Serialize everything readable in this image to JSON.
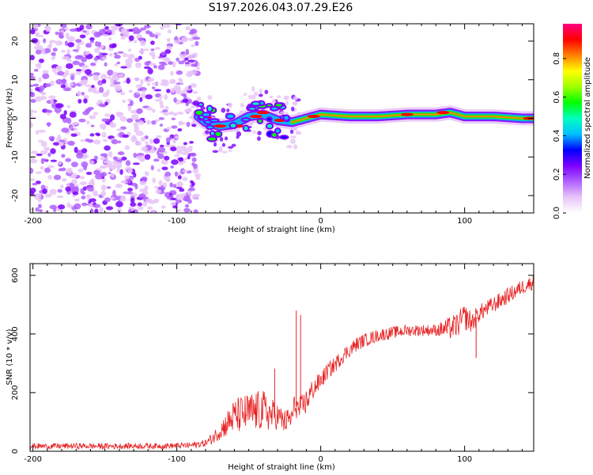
{
  "title": "S197.2026.043.07.29.E26",
  "chart_data": [
    {
      "type": "heatmap",
      "xlabel": "Height of straight line (km)",
      "ylabel": "Frequency (Hz)",
      "xlim": [
        -202,
        148
      ],
      "ylim": [
        -24.5,
        24.5
      ],
      "x_ticks": [
        -200,
        -100,
        0,
        100
      ],
      "y_ticks": [
        -20,
        -10,
        0,
        10,
        20
      ],
      "colorbar": {
        "label": "Normalized spectral amplitude",
        "range": [
          0,
          0.98
        ],
        "ticks": [
          0.0,
          0.2,
          0.4,
          0.6,
          0.8
        ],
        "tick_labels": [
          "0.0",
          "0.2",
          "0.4",
          "0.6",
          "0.8"
        ],
        "colors": [
          "#ffffff",
          "#e8c4f8",
          "#b060ff",
          "#7c00ff",
          "#0000ff",
          "#00c0ff",
          "#00ffc0",
          "#00ff00",
          "#a0ff00",
          "#ffff00",
          "#ff8000",
          "#ff0000",
          "#ff0080"
        ]
      },
      "ridge": {
        "x": [
          -85,
          -80,
          -70,
          -60,
          -50,
          -40,
          -30,
          -20,
          -10,
          0,
          20,
          40,
          60,
          80,
          90,
          100,
          110,
          120,
          140,
          148
        ],
        "freq_hz": [
          0.5,
          -1,
          -2,
          -1.5,
          0.5,
          1,
          -0.5,
          -1,
          0,
          1,
          0.5,
          0.5,
          1,
          1,
          1.5,
          0.5,
          0.5,
          0.5,
          0,
          0
        ]
      }
    },
    {
      "type": "line",
      "xlabel": "Height of straight line (km)",
      "ylabel": "SNR (10 * v/v)",
      "xlim": [
        -202,
        148
      ],
      "ylim": [
        0,
        640
      ],
      "x_ticks": [
        -200,
        -100,
        0,
        100
      ],
      "y_ticks": [
        0,
        200,
        400,
        600
      ],
      "color": "#e82020",
      "series": [
        {
          "name": "SNR",
          "x": [
            -202,
            -190,
            -170,
            -150,
            -130,
            -110,
            -90,
            -80,
            -75,
            -70,
            -65,
            -60,
            -55,
            -50,
            -45,
            -40,
            -35,
            -30,
            -25,
            -20,
            -18,
            -15,
            -10,
            -5,
            0,
            5,
            10,
            15,
            20,
            25,
            30,
            40,
            50,
            60,
            70,
            80,
            90,
            95,
            100,
            105,
            110,
            120,
            130,
            140,
            148
          ],
          "y": [
            18,
            17,
            18,
            17,
            18,
            18,
            20,
            28,
            45,
            70,
            95,
            120,
            125,
            130,
            135,
            140,
            125,
            120,
            100,
            115,
            160,
            140,
            170,
            215,
            240,
            275,
            295,
            325,
            345,
            365,
            378,
            395,
            405,
            412,
            413,
            413,
            420,
            430,
            458,
            440,
            470,
            500,
            530,
            560,
            578
          ]
        }
      ],
      "noise_amplitude": {
        "x": [
          -202,
          -100,
          -80,
          -70,
          -60,
          -50,
          -40,
          -35,
          -30,
          -20,
          -10,
          0,
          20,
          40,
          60,
          80,
          90,
          100,
          110,
          148
        ],
        "amp": [
          10,
          10,
          12,
          30,
          60,
          70,
          70,
          60,
          45,
          40,
          45,
          30,
          25,
          22,
          20,
          20,
          40,
          45,
          30,
          25
        ]
      },
      "spikes": [
        {
          "x": -17,
          "y": 480
        },
        {
          "x": -14,
          "y": 465
        },
        {
          "x": -32,
          "y": 282
        },
        {
          "x": 108,
          "y": 318
        }
      ]
    }
  ]
}
